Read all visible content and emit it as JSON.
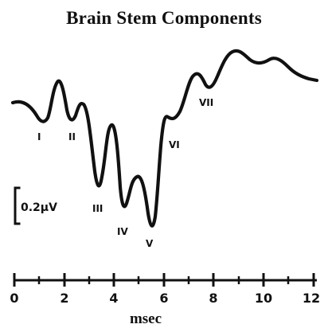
{
  "figure": {
    "title": "Brain Stem Components",
    "x_axis_label": "msec",
    "x_ticks": [
      "0",
      "2",
      "4",
      "6",
      "8",
      "10",
      "12"
    ],
    "scale_bar_label": "0.2μV"
  },
  "waveform": {
    "peaks": [
      {
        "id": "I",
        "label": "I"
      },
      {
        "id": "II",
        "label": "II"
      },
      {
        "id": "III",
        "label": "III"
      },
      {
        "id": "IV",
        "label": "IV"
      },
      {
        "id": "V",
        "label": "V"
      },
      {
        "id": "VI",
        "label": "VI"
      },
      {
        "id": "VII",
        "label": "VII"
      }
    ]
  },
  "colors": {
    "ink": "#111111",
    "background": "#ffffff"
  }
}
